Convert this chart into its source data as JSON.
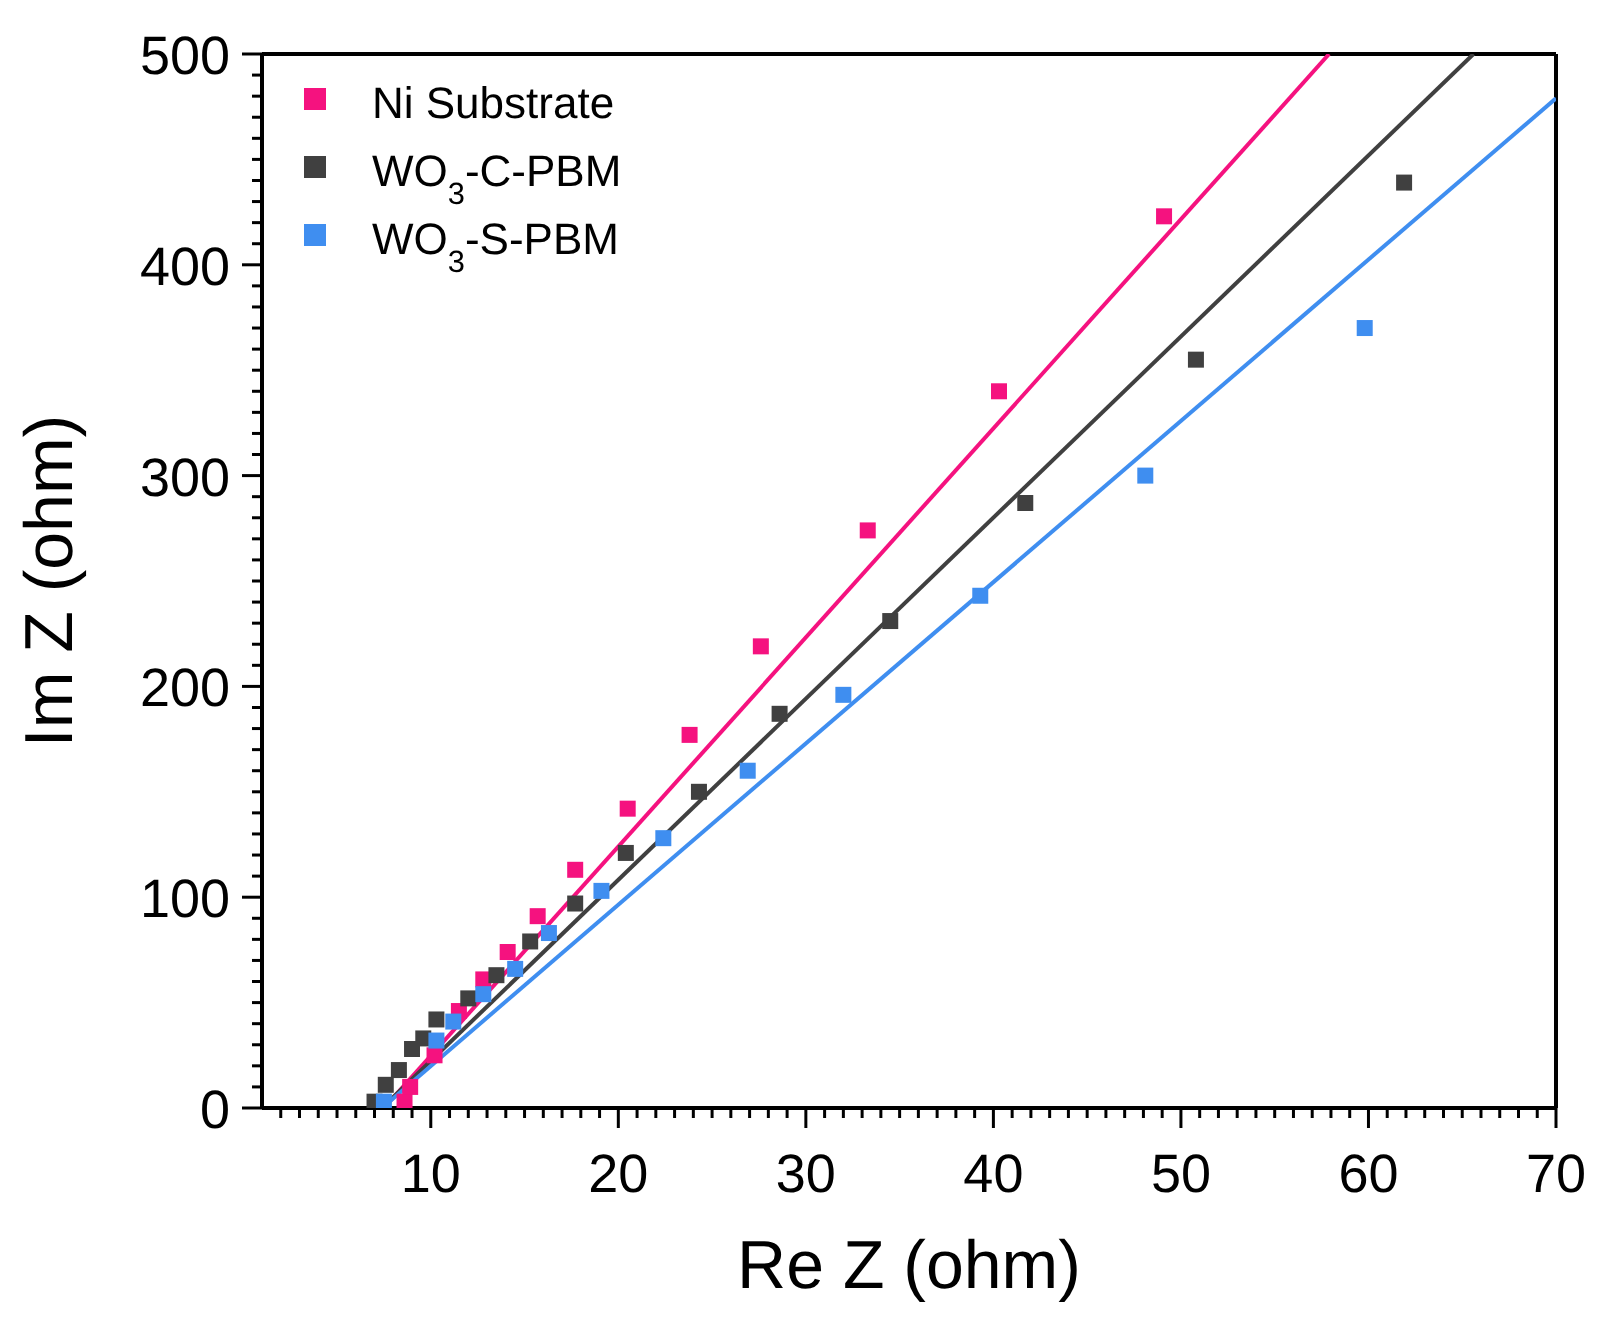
{
  "chart_data": {
    "type": "scatter",
    "xlabel": "Re Z (ohm)",
    "ylabel": "Im Z (ohm)",
    "xlim": [
      1,
      70
    ],
    "ylim": [
      0,
      500
    ],
    "xticks": [
      {
        "value": 2,
        "label": null
      },
      {
        "value": 3,
        "label": null
      },
      {
        "value": 4,
        "label": null
      },
      {
        "value": 5,
        "label": null
      },
      {
        "value": 6,
        "label": null
      },
      {
        "value": 7,
        "label": null
      },
      {
        "value": 8,
        "label": null
      },
      {
        "value": 9,
        "label": null
      },
      10,
      {
        "value": 11,
        "label": null
      },
      {
        "value": 12,
        "label": null
      },
      {
        "value": 13,
        "label": null
      },
      {
        "value": 14,
        "label": null
      },
      {
        "value": 15,
        "label": null
      },
      {
        "value": 16,
        "label": null
      },
      {
        "value": 17,
        "label": null
      },
      {
        "value": 18,
        "label": null
      },
      {
        "value": 19,
        "label": null
      },
      20,
      {
        "value": 21,
        "label": null
      },
      {
        "value": 22,
        "label": null
      },
      {
        "value": 23,
        "label": null
      },
      {
        "value": 24,
        "label": null
      },
      {
        "value": 25,
        "label": null
      },
      {
        "value": 26,
        "label": null
      },
      {
        "value": 27,
        "label": null
      },
      {
        "value": 28,
        "label": null
      },
      {
        "value": 29,
        "label": null
      },
      30,
      {
        "value": 31,
        "label": null
      },
      {
        "value": 32,
        "label": null
      },
      {
        "value": 33,
        "label": null
      },
      {
        "value": 34,
        "label": null
      },
      {
        "value": 35,
        "label": null
      },
      {
        "value": 36,
        "label": null
      },
      {
        "value": 37,
        "label": null
      },
      {
        "value": 38,
        "label": null
      },
      {
        "value": 39,
        "label": null
      },
      40,
      {
        "value": 41,
        "label": null
      },
      {
        "value": 42,
        "label": null
      },
      {
        "value": 43,
        "label": null
      },
      {
        "value": 44,
        "label": null
      },
      {
        "value": 45,
        "label": null
      },
      {
        "value": 46,
        "label": null
      },
      {
        "value": 47,
        "label": null
      },
      {
        "value": 48,
        "label": null
      },
      {
        "value": 49,
        "label": null
      },
      50,
      {
        "value": 51,
        "label": null
      },
      {
        "value": 52,
        "label": null
      },
      {
        "value": 53,
        "label": null
      },
      {
        "value": 54,
        "label": null
      },
      {
        "value": 55,
        "label": null
      },
      {
        "value": 56,
        "label": null
      },
      {
        "value": 57,
        "label": null
      },
      {
        "value": 58,
        "label": null
      },
      {
        "value": 59,
        "label": null
      },
      60,
      {
        "value": 61,
        "label": null
      },
      {
        "value": 62,
        "label": null
      },
      {
        "value": 63,
        "label": null
      },
      {
        "value": 64,
        "label": null
      },
      {
        "value": 65,
        "label": null
      },
      {
        "value": 66,
        "label": null
      },
      {
        "value": 67,
        "label": null
      },
      {
        "value": 68,
        "label": null
      },
      {
        "value": 69,
        "label": null
      },
      70
    ],
    "yticks": [
      0,
      {
        "value": 10,
        "label": null
      },
      {
        "value": 20,
        "label": null
      },
      {
        "value": 30,
        "label": null
      },
      {
        "value": 40,
        "label": null
      },
      {
        "value": 50,
        "label": null
      },
      {
        "value": 60,
        "label": null
      },
      {
        "value": 70,
        "label": null
      },
      {
        "value": 80,
        "label": null
      },
      {
        "value": 90,
        "label": null
      },
      100,
      {
        "value": 110,
        "label": null
      },
      {
        "value": 120,
        "label": null
      },
      {
        "value": 130,
        "label": null
      },
      {
        "value": 140,
        "label": null
      },
      {
        "value": 150,
        "label": null
      },
      {
        "value": 160,
        "label": null
      },
      {
        "value": 170,
        "label": null
      },
      {
        "value": 180,
        "label": null
      },
      {
        "value": 190,
        "label": null
      },
      200,
      {
        "value": 210,
        "label": null
      },
      {
        "value": 220,
        "label": null
      },
      {
        "value": 230,
        "label": null
      },
      {
        "value": 240,
        "label": null
      },
      {
        "value": 250,
        "label": null
      },
      {
        "value": 260,
        "label": null
      },
      {
        "value": 270,
        "label": null
      },
      {
        "value": 280,
        "label": null
      },
      {
        "value": 290,
        "label": null
      },
      300,
      {
        "value": 310,
        "label": null
      },
      {
        "value": 320,
        "label": null
      },
      {
        "value": 330,
        "label": null
      },
      {
        "value": 340,
        "label": null
      },
      {
        "value": 350,
        "label": null
      },
      {
        "value": 360,
        "label": null
      },
      {
        "value": 370,
        "label": null
      },
      {
        "value": 380,
        "label": null
      },
      {
        "value": 390,
        "label": null
      },
      400,
      {
        "value": 410,
        "label": null
      },
      {
        "value": 420,
        "label": null
      },
      {
        "value": 430,
        "label": null
      },
      {
        "value": 440,
        "label": null
      },
      {
        "value": 450,
        "label": null
      },
      {
        "value": 460,
        "label": null
      },
      {
        "value": 470,
        "label": null
      },
      {
        "value": 480,
        "label": null
      },
      {
        "value": 490,
        "label": null
      },
      500
    ],
    "grid": false,
    "legend": "top left",
    "marker": "square",
    "series": [
      {
        "name": "Ni Substrate",
        "color": "#f5127f",
        "x": [
          8.6,
          8.9,
          10.2,
          11.5,
          12.8,
          14.1,
          15.7,
          17.7,
          20.5,
          23.8,
          27.6,
          33.3,
          40.3,
          49.1
        ],
        "values": [
          3,
          10,
          25,
          46,
          61,
          74,
          91,
          113,
          142,
          177,
          219,
          274,
          340,
          423
        ]
      },
      {
        "name": "WO$_{3}$-C-PBM",
        "color": "#404040",
        "x": [
          7.0,
          7.6,
          8.3,
          9.0,
          9.6,
          10.3,
          12.0,
          13.5,
          15.3,
          17.7,
          20.4,
          24.3,
          28.6,
          34.5,
          41.7,
          50.8,
          61.9
        ],
        "values": [
          3,
          11,
          18,
          28,
          33,
          42,
          52,
          63,
          79,
          97,
          121,
          150,
          187,
          231,
          287,
          355,
          439
        ]
      },
      {
        "name": "WO$_{3}$-S-PBM",
        "color": "#3f8ef0",
        "x": [
          7.5,
          10.3,
          11.2,
          12.8,
          14.5,
          16.3,
          19.1,
          22.4,
          26.9,
          32.0,
          39.3,
          48.1,
          59.8
        ],
        "values": [
          3,
          32,
          41,
          54,
          66,
          83,
          103,
          128,
          160,
          196,
          243,
          300,
          370
        ]
      },
      {
        "type": "line",
        "marker": "none",
        "color": "#f5127f",
        "x": [
          7.5,
          57.9
        ],
        "values": [
          0,
          500
        ]
      },
      {
        "type": "line",
        "marker": "none",
        "color": "#404040",
        "x": [
          7.4,
          65.6
        ],
        "values": [
          0,
          500
        ]
      },
      {
        "type": "line",
        "marker": "none",
        "color": "#3f8ef0",
        "x": [
          7.4,
          70
        ],
        "values": [
          0,
          479
        ]
      }
    ]
  }
}
